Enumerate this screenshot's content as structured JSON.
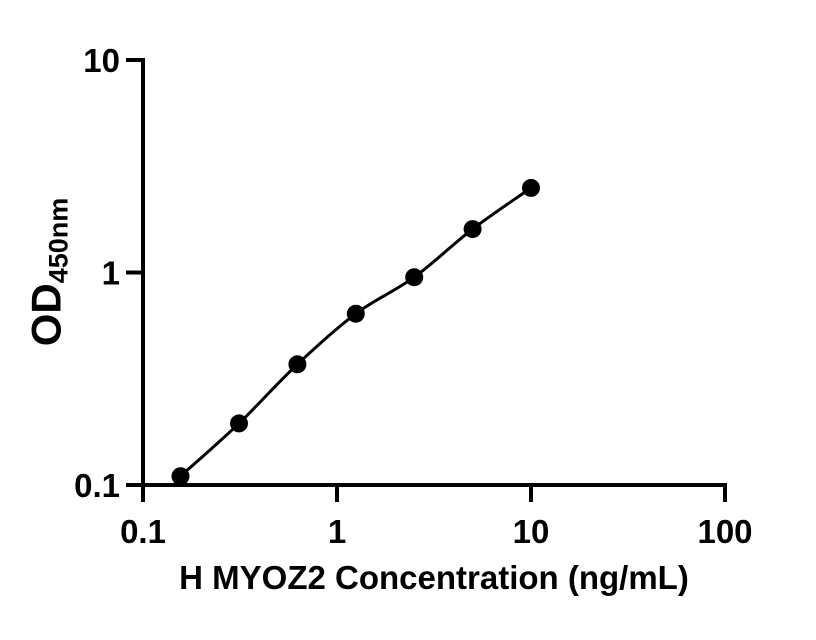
{
  "chart_data": {
    "type": "scatter",
    "xlabel": "H MYOZ2 Concentration (ng/mL)",
    "ylabel_main": "OD",
    "ylabel_sub": "450nm",
    "x_scale": "log",
    "y_scale": "log",
    "xlim": [
      0.1,
      100
    ],
    "ylim": [
      0.1,
      10
    ],
    "grid": false,
    "legend": false,
    "x_ticks": [
      {
        "value": 0.1,
        "label": "0.1"
      },
      {
        "value": 1,
        "label": "1"
      },
      {
        "value": 10,
        "label": "10"
      },
      {
        "value": 100,
        "label": "100"
      }
    ],
    "y_ticks": [
      {
        "value": 10,
        "label": "10"
      },
      {
        "value": 1,
        "label": "1"
      },
      {
        "value": 0.1,
        "label": "0.1"
      }
    ],
    "points": [
      {
        "x": 0.156,
        "y": 0.11
      },
      {
        "x": 0.3125,
        "y": 0.195
      },
      {
        "x": 0.625,
        "y": 0.37
      },
      {
        "x": 1.25,
        "y": 0.64
      },
      {
        "x": 2.5,
        "y": 0.95
      },
      {
        "x": 5,
        "y": 1.6
      },
      {
        "x": 10,
        "y": 2.5
      }
    ],
    "curve": "smooth-through-points",
    "marker_color": "#000000",
    "line_color": "#000000",
    "axis_color": "#000000",
    "background": "#ffffff"
  }
}
